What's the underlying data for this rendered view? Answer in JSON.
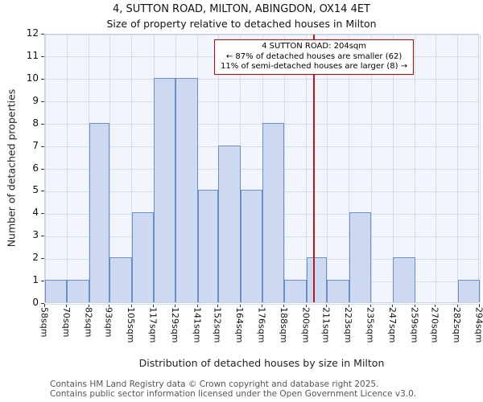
{
  "title": "4, SUTTON ROAD, MILTON, ABINGDON, OX14 4ET",
  "subtitle": "Size of property relative to detached houses in Milton",
  "chart_data": {
    "type": "bar",
    "title": "4, SUTTON ROAD, MILTON, ABINGDON, OX14 4ET",
    "subtitle": "Size of property relative to detached houses in Milton",
    "xlabel": "Distribution of detached houses by size in Milton",
    "ylabel": "Number of detached properties",
    "xlim": [
      58,
      294
    ],
    "ylim": [
      0,
      12
    ],
    "yticks": [
      0,
      1,
      2,
      3,
      4,
      5,
      6,
      7,
      8,
      9,
      10,
      11,
      12
    ],
    "bin_edges": [
      58,
      70,
      82,
      93,
      105,
      117,
      129,
      141,
      152,
      164,
      176,
      188,
      200,
      211,
      223,
      235,
      247,
      259,
      270,
      282,
      294
    ],
    "tick_labels": [
      "58sqm",
      "70sqm",
      "82sqm",
      "93sqm",
      "105sqm",
      "117sqm",
      "129sqm",
      "141sqm",
      "152sqm",
      "164sqm",
      "176sqm",
      "188sqm",
      "200sqm",
      "211sqm",
      "223sqm",
      "235sqm",
      "247sqm",
      "259sqm",
      "270sqm",
      "282sqm",
      "294sqm"
    ],
    "values": [
      1,
      1,
      8,
      2,
      4,
      10,
      10,
      5,
      7,
      5,
      8,
      1,
      2,
      1,
      4,
      0,
      2,
      0,
      0,
      1
    ],
    "grid": true,
    "legend": "none",
    "marker": {
      "value": 204
    },
    "annotation": {
      "line1": "4 SUTTON ROAD: 204sqm",
      "line2": "← 87% of detached houses are smaller (62)",
      "line3": "11% of semi-detached houses are larger (8) →"
    },
    "colors": {
      "bar_fill": "#ccd9f1",
      "bar_border": "#6a8fc8",
      "marker_line": "#bb1a1a",
      "annotation_border": "#cc0000",
      "grid_line": "#d4dcec",
      "plot_bg": "#f2f5fb"
    }
  },
  "footer": {
    "line1": "Contains HM Land Registry data © Crown copyright and database right 2025.",
    "line2": "Contains public sector information licensed under the Open Government Licence v3.0."
  }
}
